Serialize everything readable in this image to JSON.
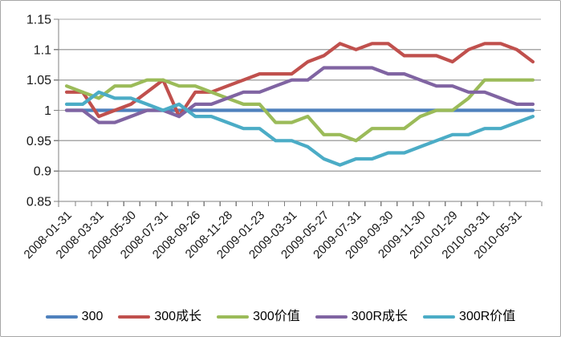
{
  "window": {
    "background": "#ffffff",
    "border_color": "#a6a6a6",
    "gridline_color": "#a8a8a8",
    "axis_color": "#808080"
  },
  "chart_data": {
    "type": "line",
    "title": "",
    "n_points": 30,
    "points_per_label": 2,
    "x_tick_labels": [
      "2008-01-31",
      "2008-03-31",
      "2008-05-30",
      "2008-07-31",
      "2008-09-26",
      "2008-11-28",
      "2009-01-23",
      "2009-03-31",
      "2009-05-27",
      "2009-07-31",
      "2009-09-30",
      "2009-11-30",
      "2010-01-29",
      "2010-03-31",
      "2010-05-31"
    ],
    "x_label_rotation_deg": -45,
    "y_axis": {
      "min": 0.85,
      "max": 1.15,
      "step": 0.05,
      "tick_labels": [
        "1.15",
        "1.1",
        "1.05",
        "1",
        "0.95",
        "0.9",
        "0.85"
      ]
    },
    "grid": true,
    "legend_position": "bottom",
    "series": [
      {
        "name": "300",
        "color": "#4F81BD",
        "values": [
          1.0,
          1.0,
          1.0,
          1.0,
          1.0,
          1.0,
          1.0,
          1.0,
          1.0,
          1.0,
          1.0,
          1.0,
          1.0,
          1.0,
          1.0,
          1.0,
          1.0,
          1.0,
          1.0,
          1.0,
          1.0,
          1.0,
          1.0,
          1.0,
          1.0,
          1.0,
          1.0,
          1.0,
          1.0,
          1.0
        ]
      },
      {
        "name": "300成长",
        "color": "#C0504D",
        "values": [
          1.03,
          1.03,
          0.99,
          1.0,
          1.01,
          1.03,
          1.05,
          0.99,
          1.03,
          1.03,
          1.04,
          1.05,
          1.06,
          1.06,
          1.06,
          1.08,
          1.09,
          1.11,
          1.1,
          1.11,
          1.11,
          1.09,
          1.09,
          1.09,
          1.08,
          1.1,
          1.11,
          1.11,
          1.1,
          1.08
        ]
      },
      {
        "name": "300价值",
        "color": "#9BBB59",
        "values": [
          1.04,
          1.03,
          1.02,
          1.04,
          1.04,
          1.05,
          1.05,
          1.04,
          1.04,
          1.03,
          1.02,
          1.01,
          1.01,
          0.98,
          0.98,
          0.99,
          0.96,
          0.96,
          0.95,
          0.97,
          0.97,
          0.97,
          0.99,
          1.0,
          1.0,
          1.02,
          1.05,
          1.05,
          1.05,
          1.05
        ]
      },
      {
        "name": "300R成长",
        "color": "#8064A2",
        "values": [
          1.0,
          1.0,
          0.98,
          0.98,
          0.99,
          1.0,
          1.0,
          0.99,
          1.01,
          1.01,
          1.02,
          1.03,
          1.03,
          1.04,
          1.05,
          1.05,
          1.07,
          1.07,
          1.07,
          1.07,
          1.06,
          1.06,
          1.05,
          1.04,
          1.04,
          1.03,
          1.03,
          1.02,
          1.01,
          1.01
        ]
      },
      {
        "name": "300R价值",
        "color": "#4BACC6",
        "values": [
          1.01,
          1.01,
          1.03,
          1.02,
          1.02,
          1.01,
          1.0,
          1.01,
          0.99,
          0.99,
          0.98,
          0.97,
          0.97,
          0.95,
          0.95,
          0.94,
          0.92,
          0.91,
          0.92,
          0.92,
          0.93,
          0.93,
          0.94,
          0.95,
          0.96,
          0.96,
          0.97,
          0.97,
          0.98,
          0.99
        ]
      }
    ]
  }
}
